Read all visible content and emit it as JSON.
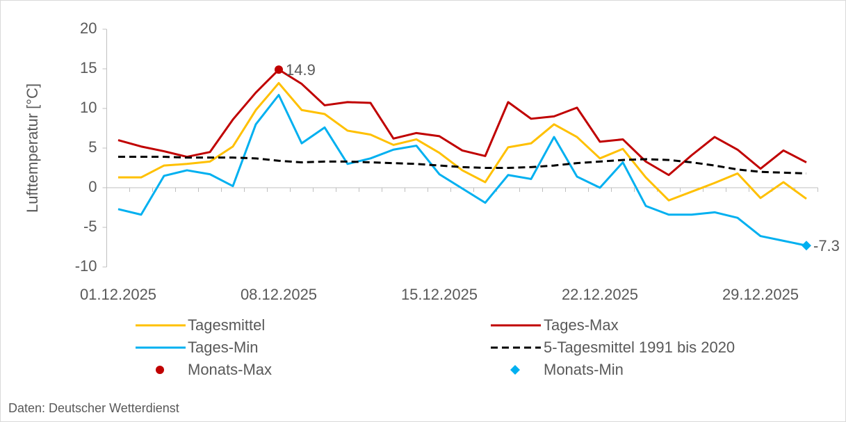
{
  "chart_data": {
    "type": "line",
    "y_label": "Lufttemperatur [°C]",
    "source": "Daten: Deutscher Wetterdienst",
    "categories": [
      "01.12.2025",
      null,
      null,
      null,
      null,
      null,
      null,
      "08.12.2025",
      null,
      null,
      null,
      null,
      null,
      null,
      "15.12.2025",
      null,
      null,
      null,
      null,
      null,
      null,
      "22.12.2025",
      null,
      null,
      null,
      null,
      null,
      null,
      "29.12.2025",
      null,
      null
    ],
    "ylim": [
      -10,
      20
    ],
    "yticks": [
      -10,
      -5,
      0,
      5,
      10,
      15,
      20
    ],
    "series": [
      {
        "name": "Tagesmittel",
        "color": "#ffc000",
        "style": "line",
        "values": [
          1.3,
          1.3,
          2.8,
          3.0,
          3.3,
          5.2,
          9.8,
          13.2,
          9.8,
          9.3,
          7.2,
          6.7,
          5.4,
          6.1,
          4.4,
          2.2,
          0.7,
          5.1,
          5.6,
          8.0,
          6.4,
          3.7,
          4.9,
          1.3,
          -1.6,
          -0.5,
          0.6,
          1.8,
          -1.3,
          0.7,
          -1.4
        ]
      },
      {
        "name": "Tages-Max",
        "color": "#c00000",
        "style": "line",
        "values": [
          6.0,
          5.2,
          4.6,
          3.9,
          4.5,
          8.6,
          12.0,
          14.9,
          13.1,
          10.4,
          10.8,
          10.7,
          6.2,
          6.9,
          6.5,
          4.7,
          4.0,
          10.8,
          8.7,
          9.0,
          10.1,
          5.8,
          6.1,
          3.3,
          1.6,
          4.1,
          6.4,
          4.8,
          2.4,
          4.7,
          3.2
        ]
      },
      {
        "name": "Tages-Min",
        "color": "#00b0f0",
        "style": "line",
        "values": [
          -2.7,
          -3.4,
          1.5,
          2.2,
          1.7,
          0.2,
          8.0,
          11.7,
          5.6,
          7.6,
          3.0,
          3.7,
          4.8,
          5.3,
          1.7,
          -0.1,
          -1.9,
          1.6,
          1.1,
          6.4,
          1.4,
          0.0,
          3.2,
          -2.3,
          -3.4,
          -3.4,
          -3.1,
          -3.8,
          -6.1,
          -6.7,
          -7.3
        ]
      },
      {
        "name": "5-Tagesmittel 1991 bis 2020",
        "color": "#000000",
        "style": "dashed",
        "values": [
          3.9,
          3.9,
          3.9,
          3.8,
          3.8,
          3.8,
          3.7,
          3.4,
          3.2,
          3.3,
          3.3,
          3.2,
          3.1,
          3.0,
          2.8,
          2.6,
          2.5,
          2.5,
          2.6,
          2.8,
          3.1,
          3.3,
          3.5,
          3.6,
          3.5,
          3.2,
          2.8,
          2.3,
          2.0,
          1.9,
          1.8
        ]
      },
      {
        "name": "Monats-Max",
        "color": "#c00000",
        "style": "dot",
        "values": [
          null,
          null,
          null,
          null,
          null,
          null,
          null,
          14.9,
          null,
          null,
          null,
          null,
          null,
          null,
          null,
          null,
          null,
          null,
          null,
          null,
          null,
          null,
          null,
          null,
          null,
          null,
          null,
          null,
          null,
          null,
          null
        ],
        "value_labels": [
          null,
          null,
          null,
          null,
          null,
          null,
          null,
          "14.9",
          null,
          null,
          null,
          null,
          null,
          null,
          null,
          null,
          null,
          null,
          null,
          null,
          null,
          null,
          null,
          null,
          null,
          null,
          null,
          null,
          null,
          null,
          null
        ]
      },
      {
        "name": "Monats-Min",
        "color": "#00b0f0",
        "style": "diamond",
        "values": [
          null,
          null,
          null,
          null,
          null,
          null,
          null,
          null,
          null,
          null,
          null,
          null,
          null,
          null,
          null,
          null,
          null,
          null,
          null,
          null,
          null,
          null,
          null,
          null,
          null,
          null,
          null,
          null,
          null,
          null,
          -7.3
        ],
        "value_labels": [
          null,
          null,
          null,
          null,
          null,
          null,
          null,
          null,
          null,
          null,
          null,
          null,
          null,
          null,
          null,
          null,
          null,
          null,
          null,
          null,
          null,
          null,
          null,
          null,
          null,
          null,
          null,
          null,
          null,
          null,
          "-7.3"
        ]
      }
    ]
  }
}
